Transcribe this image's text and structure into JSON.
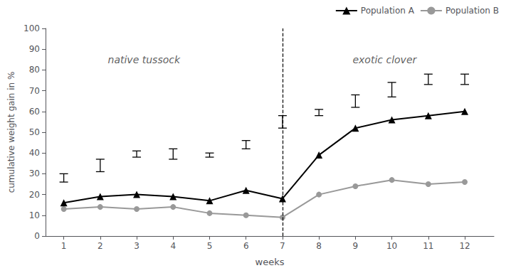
{
  "chart_data": {
    "type": "line",
    "x": [
      1,
      2,
      3,
      4,
      5,
      6,
      7,
      8,
      9,
      10,
      11,
      12
    ],
    "series": [
      {
        "name": "Population B",
        "color": "#999999",
        "marker": "circle",
        "line_style": "solid",
        "values": [
          13,
          14,
          13,
          14,
          11,
          10,
          9,
          20,
          24,
          27,
          25,
          26
        ]
      },
      {
        "name": "Population A",
        "color": "#000000",
        "marker": "triangle",
        "line_style": "solid",
        "values": [
          16,
          19,
          20,
          19,
          17,
          22,
          18,
          39,
          52,
          56,
          58,
          60
        ],
        "err_upper": [
          30,
          37,
          41,
          42,
          40,
          46,
          58,
          61,
          68,
          74,
          78,
          78
        ],
        "err_lower": [
          26,
          31,
          38,
          37,
          38,
          42,
          52,
          58,
          62,
          67,
          73,
          73
        ]
      }
    ],
    "xlabel": "weeks",
    "ylabel": "cumulative weight gain in %",
    "xlim": [
      0.5,
      12.8
    ],
    "xticks": [
      1,
      2,
      3,
      4,
      5,
      6,
      7,
      8,
      9,
      10,
      11,
      12
    ],
    "ylim": [
      0,
      100
    ],
    "yticks": [
      0,
      10,
      20,
      30,
      40,
      50,
      60,
      70,
      80,
      90,
      100
    ],
    "divider_x": 7,
    "annotations": [
      {
        "text": "native tussock",
        "x": 3.2,
        "y": 88
      },
      {
        "text": "exotic clover",
        "x": 9.8,
        "y": 88
      }
    ],
    "legend": "upper right",
    "grid": false
  }
}
